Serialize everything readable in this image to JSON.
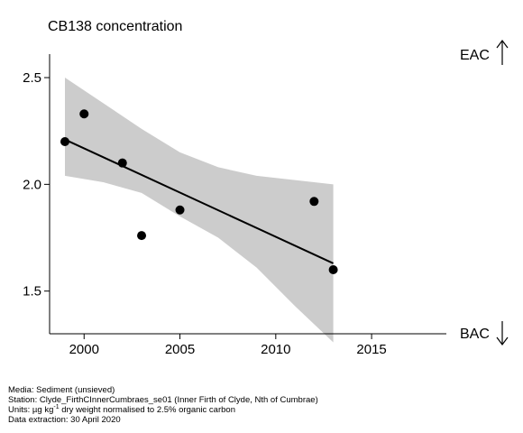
{
  "chart_data": {
    "type": "scatter",
    "title": "CB138 concentration",
    "xlabel": "",
    "ylabel": "",
    "xlim": [
      1998.2,
      2018.9
    ],
    "ylim": [
      1.3,
      2.61
    ],
    "x_ticks": [
      2000,
      2005,
      2010,
      2015
    ],
    "y_ticks": [
      1.5,
      2.0,
      2.5
    ],
    "y_tick_labels": [
      "1.5",
      "2.0",
      "2.5"
    ],
    "points": [
      {
        "x": 1999,
        "y": 2.2
      },
      {
        "x": 2000,
        "y": 2.33
      },
      {
        "x": 2002,
        "y": 2.1
      },
      {
        "x": 2003,
        "y": 1.76
      },
      {
        "x": 2005,
        "y": 1.88
      },
      {
        "x": 2012,
        "y": 1.92
      },
      {
        "x": 2013,
        "y": 1.6
      }
    ],
    "trend": {
      "x": [
        1999,
        2013
      ],
      "y": [
        2.21,
        1.63
      ]
    },
    "confidence_band": {
      "x": [
        1999,
        2001,
        2003,
        2005,
        2007,
        2009,
        2011,
        2013
      ],
      "upper": [
        2.5,
        2.38,
        2.26,
        2.15,
        2.08,
        2.04,
        2.02,
        2.0
      ],
      "lower": [
        2.04,
        2.01,
        1.96,
        1.85,
        1.75,
        1.61,
        1.43,
        1.26
      ]
    },
    "grid": false,
    "legend": "none",
    "colors": {
      "points": "#000000",
      "trend": "#000000",
      "band": "#cccccc"
    }
  },
  "labels": {
    "eac": "EAC",
    "bac": "BAC"
  },
  "footer": {
    "media": "Media: Sediment (unsieved)",
    "station": "Station: Clyde_FirthCInnerCumbraes_se01 (Inner Firth of Clyde, Nth of Cumbrae)",
    "units_prefix": "Units: µg kg",
    "units_sup": "-1",
    "units_suffix": " dry weight normalised to 2.5% organic carbon",
    "extraction": "Data extraction: 30 April 2020"
  }
}
